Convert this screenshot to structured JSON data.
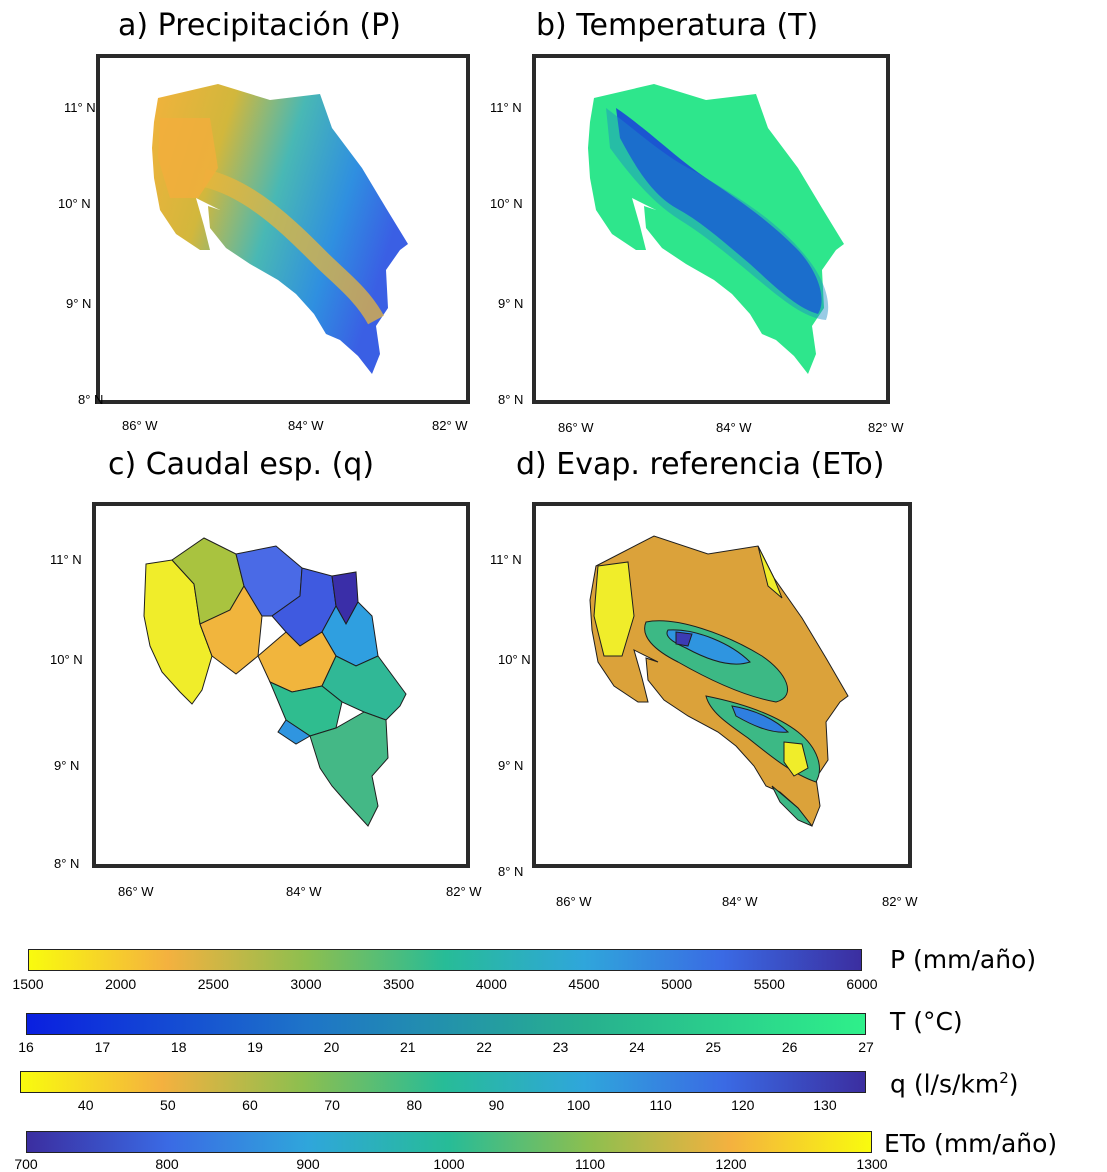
{
  "panels": [
    {
      "title": "a) Precipitación (P)",
      "lat_ticks": [
        "11° N",
        "10° N",
        "9° N",
        "8° N"
      ],
      "lon_ticks": [
        "86° W",
        "84° W",
        "82° W"
      ]
    },
    {
      "title": "b) Temperatura (T)",
      "lat_ticks": [
        "11° N",
        "10° N",
        "9° N",
        "8° N"
      ],
      "lon_ticks": [
        "86° W",
        "84° W",
        "82° W"
      ]
    },
    {
      "title": "c) Caudal esp. (q)",
      "lat_ticks": [
        "11° N",
        "10° N",
        "9° N",
        "8° N"
      ],
      "lon_ticks": [
        "86° W",
        "84° W",
        "82° W"
      ]
    },
    {
      "title": "d) Evap. referencia (ETo)",
      "lat_ticks": [
        "11° N",
        "10° N",
        "9° N",
        "8° N"
      ],
      "lon_ticks": [
        "86° W",
        "84° W",
        "82° W"
      ]
    }
  ],
  "colorbars": [
    {
      "label": "P (mm/año)",
      "ticks": [
        "1500",
        "2000",
        "2500",
        "3000",
        "3500",
        "4000",
        "4500",
        "5000",
        "5500",
        "6000"
      ],
      "range": [
        1500,
        6000
      ],
      "gradient": [
        "#f9fb0e",
        "#f4b13f",
        "#8dbf4f",
        "#27bc97",
        "#2fa6db",
        "#3a6ae4",
        "#3b2ea0"
      ]
    },
    {
      "label": "T (°C)",
      "ticks": [
        "16",
        "17",
        "18",
        "19",
        "20",
        "21",
        "22",
        "23",
        "24",
        "25",
        "26",
        "27"
      ],
      "range": [
        16,
        27
      ],
      "gradient": [
        "#0a1fe0",
        "#1e74c8",
        "#27b08e",
        "#2ef08a"
      ]
    },
    {
      "label": "q (l/s/km2)",
      "label_main": "q (l/s/km",
      "label_sup": "2",
      "label_end": ")",
      "ticks": [
        "40",
        "50",
        "60",
        "70",
        "80",
        "90",
        "100",
        "110",
        "120",
        "130"
      ],
      "range": [
        32,
        135
      ],
      "gradient": [
        "#f9fb0e",
        "#f4b13f",
        "#8dbf4f",
        "#27bc97",
        "#2fa6db",
        "#3a6ae4",
        "#3b2ea0"
      ]
    },
    {
      "label": "ETo (mm/año)",
      "ticks": [
        "700",
        "800",
        "900",
        "1000",
        "1100",
        "1200",
        "1300"
      ],
      "range": [
        700,
        1300
      ],
      "gradient": [
        "#3b2ea0",
        "#3a6ae4",
        "#2fa6db",
        "#27bc97",
        "#8dbf4f",
        "#f4b13f",
        "#f9fb0e"
      ]
    }
  ],
  "colors": {
    "land_base": "#3fb7a4",
    "frame": "#2a2a2a"
  }
}
